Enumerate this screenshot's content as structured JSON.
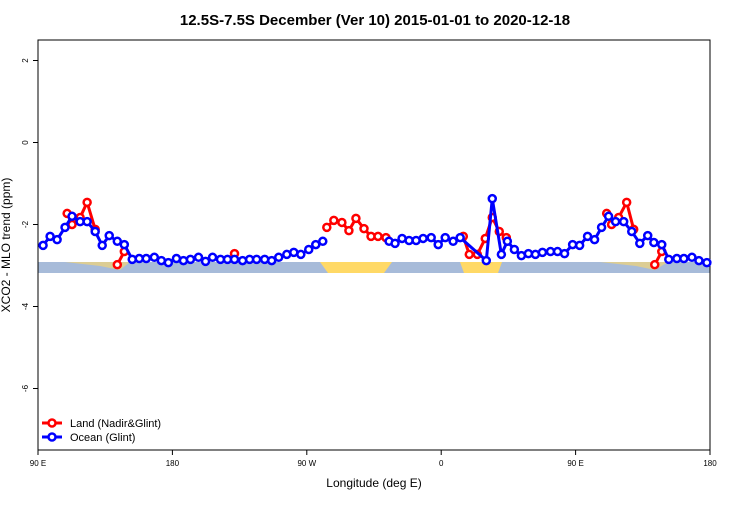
{
  "chart_data": {
    "type": "line",
    "title": "12.5S-7.5S December (Ver 10)   2015-01-01 to 2020-12-18",
    "x_label": "Longitude (deg E)",
    "y_label": "XCO2 - MLO trend (ppm)",
    "xlim": [
      90,
      540
    ],
    "ylim": [
      -7.5,
      2.5
    ],
    "xticks": [
      {
        "value": 90,
        "label": "90 E"
      },
      180,
      {
        "value": 270,
        "label": "90 W"
      },
      {
        "value": 360,
        "label": "0"
      },
      {
        "value": 450,
        "label": "90 E"
      },
      {
        "value": 540,
        "label": "180"
      }
    ],
    "yticks": [
      -6,
      -4,
      -2,
      0,
      2
    ],
    "legend": "bottom-left",
    "series": [
      {
        "name": "Land (Nadir&Glint)",
        "color": "#ff0000",
        "x": [
          109.5,
          112.8,
          118.2,
          122.9,
          128.3,
          135,
          143.1,
          147.8,
          190,
          221.6,
          270,
          283.4,
          288.1,
          293.5,
          298.2,
          302.9,
          308.3,
          313.0,
          317.7,
          323.0,
          345,
          374.8,
          378.8,
          384.2,
          389.5,
          394.2,
          398.9,
          403.6,
          455,
          470.8,
          474.1,
          478.8,
          484.2,
          488.9,
          495,
          503.0,
          507.7
        ],
        "values": [
          -1.73,
          -2.0,
          -1.83,
          -1.46,
          -2.12,
          null,
          -2.98,
          -2.66,
          null,
          -2.71,
          null,
          -2.07,
          -1.9,
          -1.95,
          -2.15,
          -1.85,
          -2.1,
          -2.29,
          -2.29,
          -2.32,
          null,
          -2.29,
          -2.73,
          -2.73,
          -2.34,
          -1.83,
          -2.17,
          -2.32,
          null,
          -1.73,
          -2.0,
          -1.83,
          -1.46,
          -2.12,
          null,
          -2.98,
          -2.66
        ]
      },
      {
        "name": "Ocean (Glint)",
        "color": "#0000ff",
        "x": [
          93.4,
          98.1,
          102.8,
          108.1,
          112.8,
          118.2,
          122.9,
          128.3,
          133.0,
          137.7,
          143.1,
          147.8,
          153.1,
          157.8,
          162.5,
          167.9,
          172.6,
          177.3,
          182.7,
          187.4,
          192.1,
          197.5,
          202.2,
          206.9,
          212.2,
          216.9,
          221.6,
          227.0,
          231.7,
          236.4,
          241.8,
          246.5,
          251.2,
          256.6,
          261.3,
          266.0,
          271.3,
          276.0,
          280.7,
          300,
          325.1,
          329.1,
          333.8,
          338.5,
          343.2,
          347.9,
          353.3,
          358.0,
          362.7,
          368.0,
          372.7,
          390.2,
          394.2,
          400.3,
          404.3,
          409.0,
          413.7,
          418.4,
          423.1,
          427.8,
          433.2,
          437.9,
          442.6,
          448.0,
          452.7,
          458.0,
          462.7,
          467.4,
          472.1,
          476.8,
          482.2,
          487.6,
          493.0,
          498.3,
          502.4,
          507.7,
          512.4,
          517.8,
          522.5,
          527.9,
          532.6,
          537.9
        ],
        "values": [
          -2.51,
          -2.29,
          -2.37,
          -2.07,
          -1.8,
          -1.93,
          -1.93,
          -2.17,
          -2.51,
          -2.27,
          -2.41,
          -2.49,
          -2.85,
          -2.83,
          -2.83,
          -2.8,
          -2.88,
          -2.93,
          -2.83,
          -2.88,
          -2.85,
          -2.8,
          -2.9,
          -2.8,
          -2.85,
          -2.85,
          -2.85,
          -2.88,
          -2.85,
          -2.85,
          -2.85,
          -2.88,
          -2.8,
          -2.73,
          -2.68,
          -2.73,
          -2.61,
          -2.49,
          -2.41,
          null,
          -2.41,
          -2.46,
          -2.34,
          -2.39,
          -2.39,
          -2.34,
          -2.32,
          -2.49,
          -2.32,
          -2.41,
          -2.32,
          -2.88,
          -1.37,
          -2.73,
          -2.41,
          -2.61,
          -2.76,
          -2.71,
          -2.73,
          -2.68,
          -2.66,
          -2.66,
          -2.71,
          -2.49,
          -2.51,
          -2.29,
          -2.37,
          -2.07,
          -1.8,
          -1.93,
          -1.93,
          -2.17,
          -2.46,
          -2.27,
          -2.44,
          -2.49,
          -2.85,
          -2.83,
          -2.83,
          -2.8,
          -2.88,
          -2.93
        ]
      }
    ]
  }
}
